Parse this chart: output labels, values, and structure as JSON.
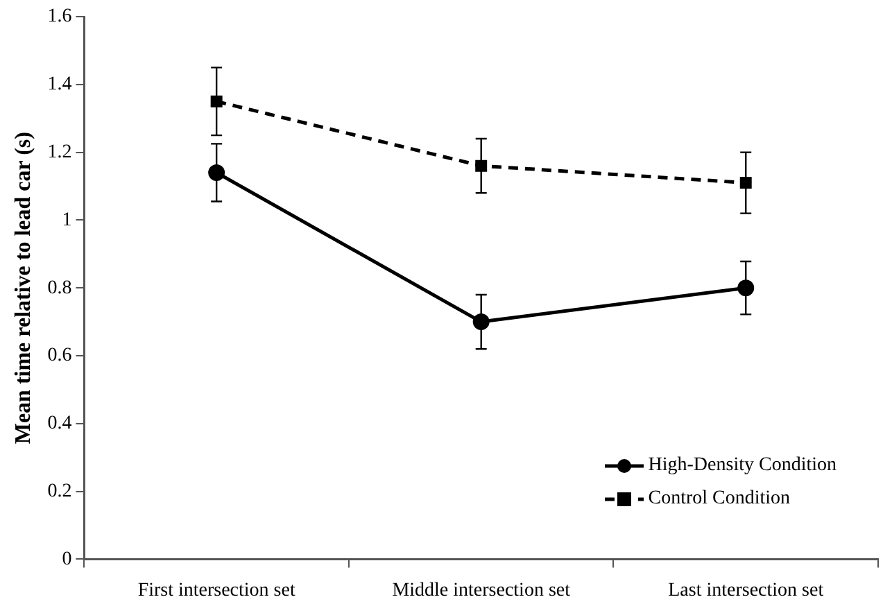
{
  "chart_data": {
    "type": "line",
    "ylabel": "Mean time relative to lead car (s)",
    "categories": [
      "First intersection set",
      "Middle intersection set",
      "Last intersection set"
    ],
    "series": [
      {
        "name": "High-Density Condition",
        "color": "#000000",
        "values": [
          1.14,
          0.7,
          0.8
        ],
        "errors": [
          0.085,
          0.08,
          0.078
        ],
        "marker": "circle",
        "line_style": "solid"
      },
      {
        "name": "Control Condition",
        "color": "#000000",
        "values": [
          1.35,
          1.16,
          1.11
        ],
        "errors": [
          0.1,
          0.08,
          0.09
        ],
        "marker": "square",
        "line_style": "dashed"
      }
    ],
    "ylim": [
      0,
      1.6
    ],
    "yticks": [
      0,
      0.2,
      0.4,
      0.6,
      0.8,
      1,
      1.2,
      1.4,
      1.6
    ],
    "grid": false,
    "legend": "bottom right"
  }
}
